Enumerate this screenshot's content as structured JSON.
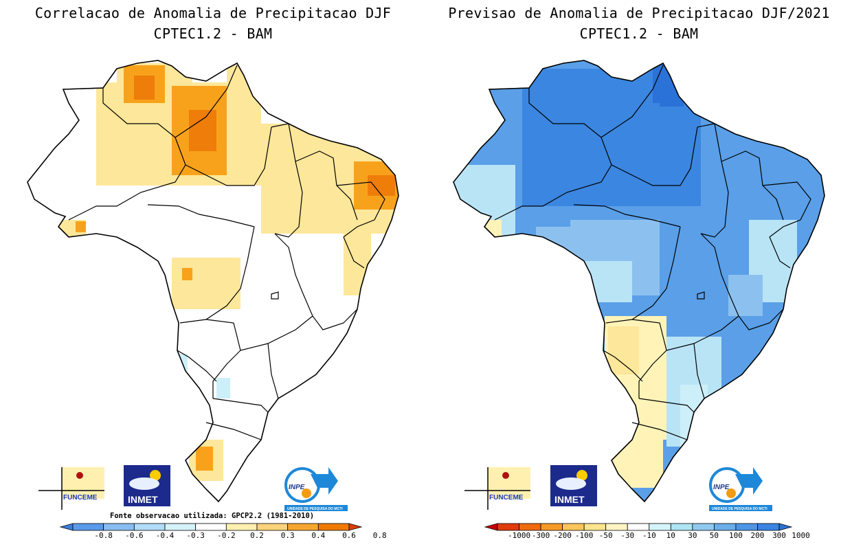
{
  "panels": [
    {
      "title_line1": "Correlacao de Anomalia de Precipitacao DJF",
      "title_line2": "CPTEC1.2 - BAM",
      "colorbar": {
        "labels": [
          "-0.8",
          "-0.6",
          "-0.4",
          "-0.3",
          "-0.2",
          "0.2",
          "0.3",
          "0.4",
          "0.6",
          "0.8"
        ],
        "colors": [
          "#3b7fdc",
          "#5b9aea",
          "#88bdf2",
          "#b0dcf8",
          "#d6f2fb",
          "#ffffff",
          "#fff0b0",
          "#fbd37a",
          "#f6a630",
          "#ef7a00",
          "#d94000"
        ]
      }
    },
    {
      "title_line1": "Previsao de Anomalia de Precipitacao DJF/2021",
      "title_line2": "CPTEC1.2 - BAM",
      "colorbar": {
        "labels": [
          "-1000",
          "-300",
          "-200",
          "-100",
          "-50",
          "-30",
          "-10",
          "10",
          "30",
          "50",
          "100",
          "200",
          "300",
          "1000"
        ],
        "colors": [
          "#c80000",
          "#e23a0c",
          "#f06a10",
          "#f89a28",
          "#fcc65c",
          "#fde48e",
          "#fff4c4",
          "#ffffff",
          "#d4f4fa",
          "#aee4f4",
          "#8fc9f0",
          "#6aaeea",
          "#4d96e6",
          "#3a84e0",
          "#2a72d8"
        ]
      }
    }
  ],
  "source_note": "Fonte observacao utilizada: GPCP2.2 (1981-2010)",
  "logos": {
    "funceme": "FUNCEME",
    "inmet": "INMET",
    "inpe": "INPE",
    "inpe_caption": "UNIDADE DE PESQUISA DO MCTI"
  },
  "colors": {
    "positive_low": "#fde79a",
    "positive_mid": "#f8a21c",
    "positive_high": "#ee7d0a",
    "negative_weak": "#cdeff9",
    "blue_light": "#b9e4f6",
    "blue_mid": "#8cc0ef",
    "blue_strong": "#5a9fe8",
    "blue_deep": "#3b86e0",
    "yellow_pale": "#fff3b8"
  }
}
